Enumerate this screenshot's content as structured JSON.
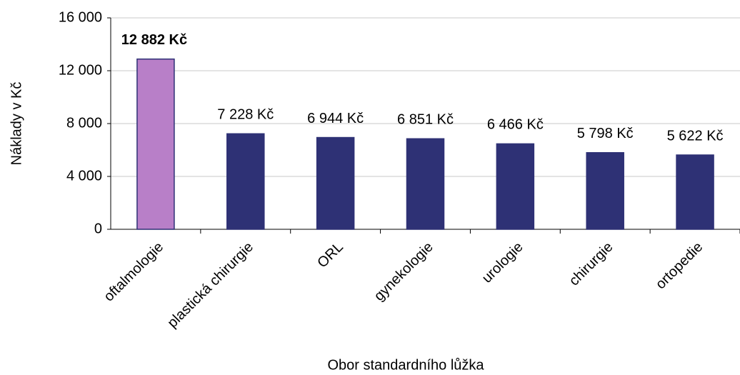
{
  "chart_data": {
    "type": "bar",
    "x_label": "Obor standardního lůžka",
    "y_label": "Náklady v Kč",
    "categories": [
      "oftalmologie",
      "plastická chirurgie",
      "ORL",
      "gynekologie",
      "urologie",
      "chirurgie",
      "ortopedie"
    ],
    "values": [
      12882,
      7228,
      6944,
      6851,
      6466,
      5798,
      5622
    ],
    "value_labels": [
      "12 882 Kč",
      "7 228 Kč",
      "6 944 Kč",
      "6 851 Kč",
      "6 466 Kč",
      "5 798 Kč",
      "5 622 Kč"
    ],
    "colors": [
      "#b87fc8",
      "#2e3175",
      "#2e3175",
      "#2e3175",
      "#2e3175",
      "#2e3175",
      "#2e3175"
    ],
    "bold_labels": [
      true,
      false,
      false,
      false,
      false,
      false,
      false
    ],
    "ylim": [
      0,
      16000
    ],
    "yticks": [
      0,
      {
        "value": 4000,
        "label": "4 000"
      },
      {
        "value": 8000,
        "label": "8 000"
      },
      {
        "value": 12000,
        "label": "12 000"
      },
      {
        "value": 16000,
        "label": "16 000"
      }
    ],
    "grid": true
  }
}
